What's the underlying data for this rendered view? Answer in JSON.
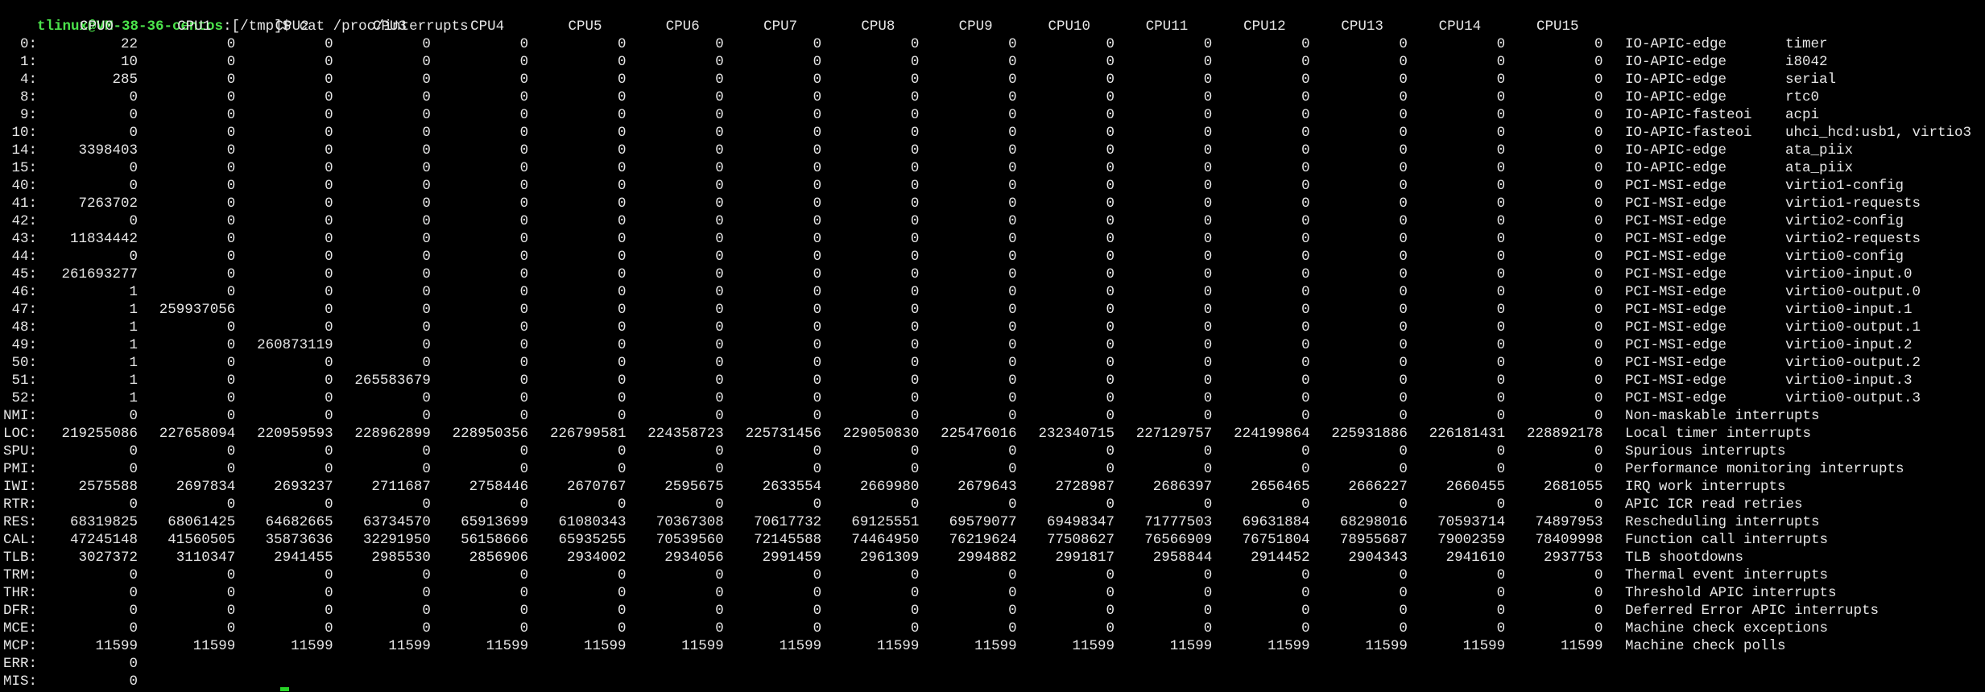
{
  "colors": {
    "background": "#000000",
    "text": "#e6e6e6",
    "prompt_user": "#4be34b",
    "cursor": "#27d327"
  },
  "prompt": {
    "user_host": "tlinux@VM-38-36-centos",
    "separator": ":",
    "path": "[/tmp]$",
    "command": " cat /proc/interrupts"
  },
  "header": [
    "CPU0",
    "CPU1",
    "CPU2",
    "CPU3",
    "CPU4",
    "CPU5",
    "CPU6",
    "CPU7",
    "CPU8",
    "CPU9",
    "CPU10",
    "CPU11",
    "CPU12",
    "CPU13",
    "CPU14",
    "CPU15"
  ],
  "rows": [
    {
      "irq": "0:",
      "counts": [
        "22",
        "0",
        "0",
        "0",
        "0",
        "0",
        "0",
        "0",
        "0",
        "0",
        "0",
        "0",
        "0",
        "0",
        "0",
        "0"
      ],
      "chip": "IO-APIC-edge",
      "device": "timer"
    },
    {
      "irq": "1:",
      "counts": [
        "10",
        "0",
        "0",
        "0",
        "0",
        "0",
        "0",
        "0",
        "0",
        "0",
        "0",
        "0",
        "0",
        "0",
        "0",
        "0"
      ],
      "chip": "IO-APIC-edge",
      "device": "i8042"
    },
    {
      "irq": "4:",
      "counts": [
        "285",
        "0",
        "0",
        "0",
        "0",
        "0",
        "0",
        "0",
        "0",
        "0",
        "0",
        "0",
        "0",
        "0",
        "0",
        "0"
      ],
      "chip": "IO-APIC-edge",
      "device": "serial"
    },
    {
      "irq": "8:",
      "counts": [
        "0",
        "0",
        "0",
        "0",
        "0",
        "0",
        "0",
        "0",
        "0",
        "0",
        "0",
        "0",
        "0",
        "0",
        "0",
        "0"
      ],
      "chip": "IO-APIC-edge",
      "device": "rtc0"
    },
    {
      "irq": "9:",
      "counts": [
        "0",
        "0",
        "0",
        "0",
        "0",
        "0",
        "0",
        "0",
        "0",
        "0",
        "0",
        "0",
        "0",
        "0",
        "0",
        "0"
      ],
      "chip": "IO-APIC-fasteoi",
      "device": "acpi"
    },
    {
      "irq": "10:",
      "counts": [
        "0",
        "0",
        "0",
        "0",
        "0",
        "0",
        "0",
        "0",
        "0",
        "0",
        "0",
        "0",
        "0",
        "0",
        "0",
        "0"
      ],
      "chip": "IO-APIC-fasteoi",
      "device": "uhci_hcd:usb1, virtio3"
    },
    {
      "irq": "14:",
      "counts": [
        "3398403",
        "0",
        "0",
        "0",
        "0",
        "0",
        "0",
        "0",
        "0",
        "0",
        "0",
        "0",
        "0",
        "0",
        "0",
        "0"
      ],
      "chip": "IO-APIC-edge",
      "device": "ata_piix"
    },
    {
      "irq": "15:",
      "counts": [
        "0",
        "0",
        "0",
        "0",
        "0",
        "0",
        "0",
        "0",
        "0",
        "0",
        "0",
        "0",
        "0",
        "0",
        "0",
        "0"
      ],
      "chip": "IO-APIC-edge",
      "device": "ata_piix"
    },
    {
      "irq": "40:",
      "counts": [
        "0",
        "0",
        "0",
        "0",
        "0",
        "0",
        "0",
        "0",
        "0",
        "0",
        "0",
        "0",
        "0",
        "0",
        "0",
        "0"
      ],
      "chip": "PCI-MSI-edge",
      "device": "virtio1-config"
    },
    {
      "irq": "41:",
      "counts": [
        "7263702",
        "0",
        "0",
        "0",
        "0",
        "0",
        "0",
        "0",
        "0",
        "0",
        "0",
        "0",
        "0",
        "0",
        "0",
        "0"
      ],
      "chip": "PCI-MSI-edge",
      "device": "virtio1-requests"
    },
    {
      "irq": "42:",
      "counts": [
        "0",
        "0",
        "0",
        "0",
        "0",
        "0",
        "0",
        "0",
        "0",
        "0",
        "0",
        "0",
        "0",
        "0",
        "0",
        "0"
      ],
      "chip": "PCI-MSI-edge",
      "device": "virtio2-config"
    },
    {
      "irq": "43:",
      "counts": [
        "11834442",
        "0",
        "0",
        "0",
        "0",
        "0",
        "0",
        "0",
        "0",
        "0",
        "0",
        "0",
        "0",
        "0",
        "0",
        "0"
      ],
      "chip": "PCI-MSI-edge",
      "device": "virtio2-requests"
    },
    {
      "irq": "44:",
      "counts": [
        "0",
        "0",
        "0",
        "0",
        "0",
        "0",
        "0",
        "0",
        "0",
        "0",
        "0",
        "0",
        "0",
        "0",
        "0",
        "0"
      ],
      "chip": "PCI-MSI-edge",
      "device": "virtio0-config"
    },
    {
      "irq": "45:",
      "counts": [
        "261693277",
        "0",
        "0",
        "0",
        "0",
        "0",
        "0",
        "0",
        "0",
        "0",
        "0",
        "0",
        "0",
        "0",
        "0",
        "0"
      ],
      "chip": "PCI-MSI-edge",
      "device": "virtio0-input.0"
    },
    {
      "irq": "46:",
      "counts": [
        "1",
        "0",
        "0",
        "0",
        "0",
        "0",
        "0",
        "0",
        "0",
        "0",
        "0",
        "0",
        "0",
        "0",
        "0",
        "0"
      ],
      "chip": "PCI-MSI-edge",
      "device": "virtio0-output.0"
    },
    {
      "irq": "47:",
      "counts": [
        "1",
        "259937056",
        "0",
        "0",
        "0",
        "0",
        "0",
        "0",
        "0",
        "0",
        "0",
        "0",
        "0",
        "0",
        "0",
        "0"
      ],
      "chip": "PCI-MSI-edge",
      "device": "virtio0-input.1"
    },
    {
      "irq": "48:",
      "counts": [
        "1",
        "0",
        "0",
        "0",
        "0",
        "0",
        "0",
        "0",
        "0",
        "0",
        "0",
        "0",
        "0",
        "0",
        "0",
        "0"
      ],
      "chip": "PCI-MSI-edge",
      "device": "virtio0-output.1"
    },
    {
      "irq": "49:",
      "counts": [
        "1",
        "0",
        "260873119",
        "0",
        "0",
        "0",
        "0",
        "0",
        "0",
        "0",
        "0",
        "0",
        "0",
        "0",
        "0",
        "0"
      ],
      "chip": "PCI-MSI-edge",
      "device": "virtio0-input.2"
    },
    {
      "irq": "50:",
      "counts": [
        "1",
        "0",
        "0",
        "0",
        "0",
        "0",
        "0",
        "0",
        "0",
        "0",
        "0",
        "0",
        "0",
        "0",
        "0",
        "0"
      ],
      "chip": "PCI-MSI-edge",
      "device": "virtio0-output.2"
    },
    {
      "irq": "51:",
      "counts": [
        "1",
        "0",
        "0",
        "265583679",
        "0",
        "0",
        "0",
        "0",
        "0",
        "0",
        "0",
        "0",
        "0",
        "0",
        "0",
        "0"
      ],
      "chip": "PCI-MSI-edge",
      "device": "virtio0-input.3"
    },
    {
      "irq": "52:",
      "counts": [
        "1",
        "0",
        "0",
        "0",
        "0",
        "0",
        "0",
        "0",
        "0",
        "0",
        "0",
        "0",
        "0",
        "0",
        "0",
        "0"
      ],
      "chip": "PCI-MSI-edge",
      "device": "virtio0-output.3"
    },
    {
      "irq": "NMI:",
      "counts": [
        "0",
        "0",
        "0",
        "0",
        "0",
        "0",
        "0",
        "0",
        "0",
        "0",
        "0",
        "0",
        "0",
        "0",
        "0",
        "0"
      ],
      "chip": "",
      "device": "Non-maskable interrupts"
    },
    {
      "irq": "LOC:",
      "counts": [
        "219255086",
        "227658094",
        "220959593",
        "228962899",
        "228950356",
        "226799581",
        "224358723",
        "225731456",
        "229050830",
        "225476016",
        "232340715",
        "227129757",
        "224199864",
        "225931886",
        "226181431",
        "228892178"
      ],
      "chip": "",
      "device": "Local timer interrupts"
    },
    {
      "irq": "SPU:",
      "counts": [
        "0",
        "0",
        "0",
        "0",
        "0",
        "0",
        "0",
        "0",
        "0",
        "0",
        "0",
        "0",
        "0",
        "0",
        "0",
        "0"
      ],
      "chip": "",
      "device": "Spurious interrupts"
    },
    {
      "irq": "PMI:",
      "counts": [
        "0",
        "0",
        "0",
        "0",
        "0",
        "0",
        "0",
        "0",
        "0",
        "0",
        "0",
        "0",
        "0",
        "0",
        "0",
        "0"
      ],
      "chip": "",
      "device": "Performance monitoring interrupts"
    },
    {
      "irq": "IWI:",
      "counts": [
        "2575588",
        "2697834",
        "2693237",
        "2711687",
        "2758446",
        "2670767",
        "2595675",
        "2633554",
        "2669980",
        "2679643",
        "2728987",
        "2686397",
        "2656465",
        "2666227",
        "2660455",
        "2681055"
      ],
      "chip": "",
      "device": "IRQ work interrupts"
    },
    {
      "irq": "RTR:",
      "counts": [
        "0",
        "0",
        "0",
        "0",
        "0",
        "0",
        "0",
        "0",
        "0",
        "0",
        "0",
        "0",
        "0",
        "0",
        "0",
        "0"
      ],
      "chip": "",
      "device": "APIC ICR read retries"
    },
    {
      "irq": "RES:",
      "counts": [
        "68319825",
        "68061425",
        "64682665",
        "63734570",
        "65913699",
        "61080343",
        "70367308",
        "70617732",
        "69125551",
        "69579077",
        "69498347",
        "71777503",
        "69631884",
        "68298016",
        "70593714",
        "74897953"
      ],
      "chip": "",
      "device": "Rescheduling interrupts"
    },
    {
      "irq": "CAL:",
      "counts": [
        "47245148",
        "41560505",
        "35873636",
        "32291950",
        "56158666",
        "65935255",
        "70539560",
        "72145588",
        "74464950",
        "76219624",
        "77508627",
        "76566909",
        "76751804",
        "78955687",
        "79002359",
        "78409998"
      ],
      "chip": "",
      "device": "Function call interrupts"
    },
    {
      "irq": "TLB:",
      "counts": [
        "3027372",
        "3110347",
        "2941455",
        "2985530",
        "2856906",
        "2934002",
        "2934056",
        "2991459",
        "2961309",
        "2994882",
        "2991817",
        "2958844",
        "2914452",
        "2904343",
        "2941610",
        "2937753"
      ],
      "chip": "",
      "device": "TLB shootdowns"
    },
    {
      "irq": "TRM:",
      "counts": [
        "0",
        "0",
        "0",
        "0",
        "0",
        "0",
        "0",
        "0",
        "0",
        "0",
        "0",
        "0",
        "0",
        "0",
        "0",
        "0"
      ],
      "chip": "",
      "device": "Thermal event interrupts"
    },
    {
      "irq": "THR:",
      "counts": [
        "0",
        "0",
        "0",
        "0",
        "0",
        "0",
        "0",
        "0",
        "0",
        "0",
        "0",
        "0",
        "0",
        "0",
        "0",
        "0"
      ],
      "chip": "",
      "device": "Threshold APIC interrupts"
    },
    {
      "irq": "DFR:",
      "counts": [
        "0",
        "0",
        "0",
        "0",
        "0",
        "0",
        "0",
        "0",
        "0",
        "0",
        "0",
        "0",
        "0",
        "0",
        "0",
        "0"
      ],
      "chip": "",
      "device": "Deferred Error APIC interrupts"
    },
    {
      "irq": "MCE:",
      "counts": [
        "0",
        "0",
        "0",
        "0",
        "0",
        "0",
        "0",
        "0",
        "0",
        "0",
        "0",
        "0",
        "0",
        "0",
        "0",
        "0"
      ],
      "chip": "",
      "device": "Machine check exceptions"
    },
    {
      "irq": "MCP:",
      "counts": [
        "11599",
        "11599",
        "11599",
        "11599",
        "11599",
        "11599",
        "11599",
        "11599",
        "11599",
        "11599",
        "11599",
        "11599",
        "11599",
        "11599",
        "11599",
        "11599"
      ],
      "chip": "",
      "device": "Machine check polls"
    },
    {
      "irq": "ERR:",
      "counts": [
        "0"
      ],
      "chip": "",
      "device": ""
    },
    {
      "irq": "MIS:",
      "counts": [
        "0"
      ],
      "chip": "",
      "device": ""
    }
  ]
}
